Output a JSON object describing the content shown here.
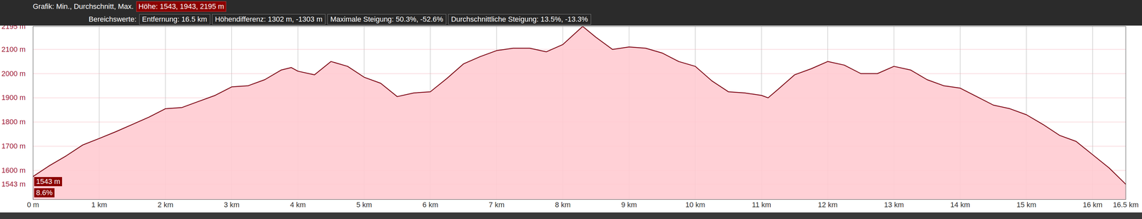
{
  "header": {
    "rows": [
      [
        "Grafik: Min., Durchschnitt, Max.",
        "Höhe: 1543, 1943, 2195 m"
      ],
      [
        "Bereichswerte:",
        "Entfernung: 16.5 km",
        "Höhendifferenz: 1302 m, -1303 m",
        "Maximale Steigung: 50.3%, -52.6%",
        "Durchschnittliche Steigung: 13.5%, -13.3%"
      ]
    ]
  },
  "chart_data": {
    "type": "area",
    "color": "#7a0010",
    "x": [
      0,
      0.25,
      0.5,
      0.75,
      1,
      1.25,
      1.5,
      1.75,
      2,
      2.25,
      2.5,
      2.75,
      3,
      3.25,
      3.5,
      3.75,
      3.9,
      4,
      4.25,
      4.5,
      4.75,
      5,
      5.25,
      5.5,
      5.75,
      6,
      6.25,
      6.5,
      6.75,
      7,
      7.25,
      7.5,
      7.75,
      8,
      8.3,
      8.5,
      8.75,
      9,
      9.25,
      9.5,
      9.75,
      10,
      10.25,
      10.5,
      10.75,
      11,
      11.1,
      11.25,
      11.5,
      11.75,
      12,
      12.25,
      12.5,
      12.75,
      13,
      13.25,
      13.5,
      13.75,
      14,
      14.25,
      14.5,
      14.75,
      15,
      15.25,
      15.5,
      15.75,
      16,
      16.25,
      16.5
    ],
    "values": [
      1575,
      1620,
      1660,
      1705,
      1732,
      1760,
      1790,
      1820,
      1855,
      1860,
      1885,
      1910,
      1945,
      1950,
      1975,
      2015,
      2025,
      2010,
      1995,
      2050,
      2030,
      1985,
      1960,
      1905,
      1920,
      1925,
      1980,
      2040,
      2070,
      2095,
      2105,
      2105,
      2090,
      2120,
      2195,
      2150,
      2100,
      2110,
      2105,
      2085,
      2050,
      2030,
      1970,
      1925,
      1920,
      1910,
      1900,
      1935,
      1995,
      2020,
      2050,
      2035,
      2000,
      2000,
      2030,
      2015,
      1975,
      1950,
      1940,
      1905,
      1870,
      1855,
      1830,
      1790,
      1745,
      1720,
      1665,
      1610,
      1543
    ],
    "xlim": [
      0,
      16.5
    ],
    "ylim": [
      1480,
      2195
    ],
    "xticks": [
      {
        "value": 0,
        "label": "0 m"
      },
      {
        "value": 1,
        "label": "1 km"
      },
      {
        "value": 2,
        "label": "2 km"
      },
      {
        "value": 3,
        "label": "3 km"
      },
      {
        "value": 4,
        "label": "4 km"
      },
      {
        "value": 5,
        "label": "5 km"
      },
      {
        "value": 6,
        "label": "6 km"
      },
      {
        "value": 7,
        "label": "7 km"
      },
      {
        "value": 8,
        "label": "8 km"
      },
      {
        "value": 9,
        "label": "9 km"
      },
      {
        "value": 10,
        "label": "10 km"
      },
      {
        "value": 11,
        "label": "11 km"
      },
      {
        "value": 12,
        "label": "12 km"
      },
      {
        "value": 13,
        "label": "13 km"
      },
      {
        "value": 14,
        "label": "14 km"
      },
      {
        "value": 15,
        "label": "15 km"
      },
      {
        "value": 16,
        "label": "16 km"
      },
      {
        "value": 16.5,
        "label": "16.5 km"
      }
    ],
    "yticks": [
      {
        "value": 1543,
        "label": "1543 m"
      },
      {
        "value": 1600,
        "label": "1600 m"
      },
      {
        "value": 1700,
        "label": "1700 m"
      },
      {
        "value": 1800,
        "label": "1800 m"
      },
      {
        "value": 1900,
        "label": "1900 m"
      },
      {
        "value": 2000,
        "label": "2000 m"
      },
      {
        "value": 2100,
        "label": "2100 m"
      },
      {
        "value": 2195,
        "label": "2195 m"
      }
    ],
    "grid": true,
    "annotations": [
      "1543 m",
      "8.6%"
    ]
  }
}
